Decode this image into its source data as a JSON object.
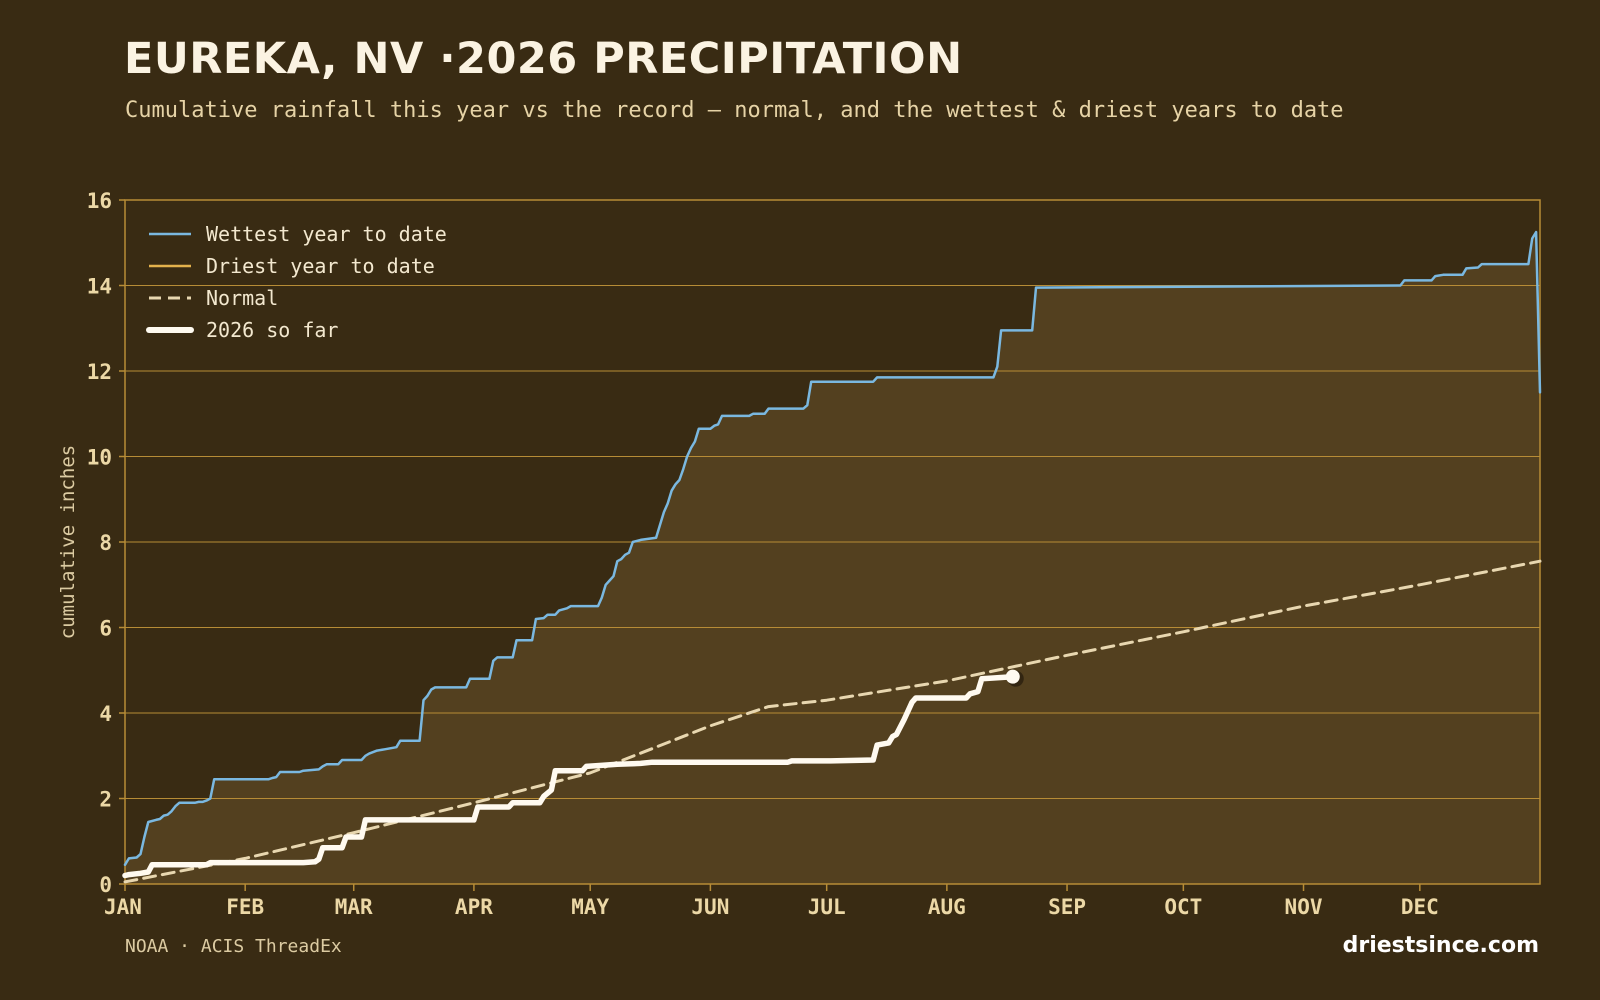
{
  "title": "EUREKA, NV ·2026 PRECIPITATION",
  "subtitle": "Cumulative rainfall this year vs the record — normal, and the wettest & driest years to date",
  "footer": {
    "source": "NOAA · ACIS ThreadEx",
    "brand": "driestsince.com"
  },
  "colors": {
    "background": "#392b13",
    "fill": "#53401f",
    "grid": "#b78c36",
    "wettest": "#7ab8e0",
    "driest": "#e4b24c",
    "normal": "#e8d7b0",
    "current": "#fffaf0",
    "tick": "#ecd8a6"
  },
  "chart_data": {
    "type": "line",
    "ylabel": "cumulative inches",
    "ylim": [
      0,
      16
    ],
    "yticks": [
      "0",
      "2",
      "4",
      "6",
      "8",
      "10",
      "12",
      "14",
      "16"
    ],
    "xlim": [
      1,
      366
    ],
    "months": [
      {
        "label": "JAN",
        "day": 1
      },
      {
        "label": "FEB",
        "day": 32
      },
      {
        "label": "MAR",
        "day": 60
      },
      {
        "label": "APR",
        "day": 91
      },
      {
        "label": "MAY",
        "day": 121
      },
      {
        "label": "JUN",
        "day": 152
      },
      {
        "label": "JUL",
        "day": 182
      },
      {
        "label": "AUG",
        "day": 213
      },
      {
        "label": "SEP",
        "day": 244
      },
      {
        "label": "OCT",
        "day": 274
      },
      {
        "label": "NOV",
        "day": 305
      },
      {
        "label": "DEC",
        "day": 335
      }
    ],
    "legend_position": "top-left",
    "series": [
      {
        "key": "wettest",
        "name": "Wettest year to date",
        "points": [
          [
            1,
            0.45
          ],
          [
            2,
            0.6
          ],
          [
            4,
            0.62
          ],
          [
            5,
            0.7
          ],
          [
            6,
            1.1
          ],
          [
            7,
            1.45
          ],
          [
            9,
            1.5
          ],
          [
            10,
            1.52
          ],
          [
            11,
            1.6
          ],
          [
            12,
            1.62
          ],
          [
            13,
            1.7
          ],
          [
            14,
            1.82
          ],
          [
            15,
            1.9
          ],
          [
            19,
            1.9
          ],
          [
            20,
            1.92
          ],
          [
            21,
            1.92
          ],
          [
            22,
            1.95
          ],
          [
            23,
            2.0
          ],
          [
            24,
            2.45
          ],
          [
            38,
            2.45
          ],
          [
            39,
            2.48
          ],
          [
            40,
            2.5
          ],
          [
            41,
            2.62
          ],
          [
            46,
            2.62
          ],
          [
            47,
            2.65
          ],
          [
            51,
            2.68
          ],
          [
            52,
            2.75
          ],
          [
            53,
            2.8
          ],
          [
            56,
            2.8
          ],
          [
            57,
            2.9
          ],
          [
            62,
            2.9
          ],
          [
            63,
            3.0
          ],
          [
            64,
            3.05
          ],
          [
            66,
            3.12
          ],
          [
            68,
            3.15
          ],
          [
            71,
            3.2
          ],
          [
            72,
            3.35
          ],
          [
            77,
            3.35
          ],
          [
            78,
            4.3
          ],
          [
            79,
            4.4
          ],
          [
            80,
            4.55
          ],
          [
            81,
            4.6
          ],
          [
            89,
            4.6
          ],
          [
            90,
            4.8
          ],
          [
            95,
            4.8
          ],
          [
            96,
            5.22
          ],
          [
            97,
            5.3
          ],
          [
            101,
            5.3
          ],
          [
            102,
            5.7
          ],
          [
            106,
            5.7
          ],
          [
            107,
            6.2
          ],
          [
            109,
            6.22
          ],
          [
            110,
            6.3
          ],
          [
            112,
            6.3
          ],
          [
            113,
            6.4
          ],
          [
            115,
            6.45
          ],
          [
            116,
            6.5
          ],
          [
            123,
            6.5
          ],
          [
            124,
            6.7
          ],
          [
            125,
            7.0
          ],
          [
            126,
            7.1
          ],
          [
            127,
            7.2
          ],
          [
            128,
            7.55
          ],
          [
            129,
            7.6
          ],
          [
            130,
            7.7
          ],
          [
            131,
            7.75
          ],
          [
            132,
            8.0
          ],
          [
            134,
            8.05
          ],
          [
            138,
            8.1
          ],
          [
            139,
            8.4
          ],
          [
            140,
            8.7
          ],
          [
            141,
            8.9
          ],
          [
            142,
            9.2
          ],
          [
            143,
            9.35
          ],
          [
            144,
            9.45
          ],
          [
            145,
            9.7
          ],
          [
            146,
            10.0
          ],
          [
            147,
            10.2
          ],
          [
            148,
            10.35
          ],
          [
            149,
            10.65
          ],
          [
            152,
            10.65
          ],
          [
            153,
            10.72
          ],
          [
            154,
            10.75
          ],
          [
            155,
            10.95
          ],
          [
            162,
            10.95
          ],
          [
            163,
            11.0
          ],
          [
            166,
            11.0
          ],
          [
            167,
            11.12
          ],
          [
            176,
            11.12
          ],
          [
            177,
            11.2
          ],
          [
            178,
            11.75
          ],
          [
            194,
            11.75
          ],
          [
            195,
            11.85
          ],
          [
            225,
            11.85
          ],
          [
            226,
            12.1
          ],
          [
            227,
            12.95
          ],
          [
            235,
            12.95
          ],
          [
            236,
            13.95
          ],
          [
            330,
            14.0
          ],
          [
            331,
            14.12
          ],
          [
            338,
            14.12
          ],
          [
            339,
            14.22
          ],
          [
            341,
            14.25
          ],
          [
            346,
            14.25
          ],
          [
            347,
            14.4
          ],
          [
            350,
            14.42
          ],
          [
            351,
            14.5
          ],
          [
            363,
            14.5
          ],
          [
            364,
            15.1
          ],
          [
            365,
            15.25
          ],
          [
            366,
            11.5
          ]
        ]
      },
      {
        "key": "driest",
        "name": "Driest year to date",
        "points": []
      },
      {
        "key": "normal",
        "name": "Normal",
        "points": [
          [
            1,
            0.05
          ],
          [
            32,
            0.6
          ],
          [
            60,
            1.2
          ],
          [
            91,
            1.9
          ],
          [
            121,
            2.6
          ],
          [
            152,
            3.7
          ],
          [
            167,
            4.15
          ],
          [
            182,
            4.3
          ],
          [
            213,
            4.75
          ],
          [
            244,
            5.35
          ],
          [
            274,
            5.9
          ],
          [
            305,
            6.5
          ],
          [
            335,
            7.0
          ],
          [
            366,
            7.55
          ]
        ]
      },
      {
        "key": "current",
        "name": "2026 so far",
        "points": [
          [
            1,
            0.2
          ],
          [
            2,
            0.22
          ],
          [
            5,
            0.25
          ],
          [
            7,
            0.28
          ],
          [
            8,
            0.45
          ],
          [
            22,
            0.45
          ],
          [
            23,
            0.5
          ],
          [
            47,
            0.5
          ],
          [
            50,
            0.52
          ],
          [
            51,
            0.58
          ],
          [
            52,
            0.85
          ],
          [
            57,
            0.85
          ],
          [
            58,
            1.1
          ],
          [
            62,
            1.1
          ],
          [
            63,
            1.5
          ],
          [
            91,
            1.5
          ],
          [
            92,
            1.8
          ],
          [
            100,
            1.8
          ],
          [
            101,
            1.9
          ],
          [
            108,
            1.9
          ],
          [
            109,
            2.05
          ],
          [
            111,
            2.2
          ],
          [
            112,
            2.65
          ],
          [
            119,
            2.65
          ],
          [
            120,
            2.75
          ],
          [
            128,
            2.8
          ],
          [
            134,
            2.82
          ],
          [
            137,
            2.85
          ],
          [
            172,
            2.85
          ],
          [
            173,
            2.88
          ],
          [
            183,
            2.88
          ],
          [
            194,
            2.9
          ],
          [
            195,
            3.25
          ],
          [
            198,
            3.3
          ],
          [
            199,
            3.45
          ],
          [
            200,
            3.5
          ],
          [
            202,
            3.85
          ],
          [
            204,
            4.25
          ],
          [
            205,
            4.35
          ],
          [
            218,
            4.35
          ],
          [
            219,
            4.45
          ],
          [
            221,
            4.5
          ],
          [
            222,
            4.8
          ],
          [
            230,
            4.85
          ]
        ]
      }
    ]
  }
}
